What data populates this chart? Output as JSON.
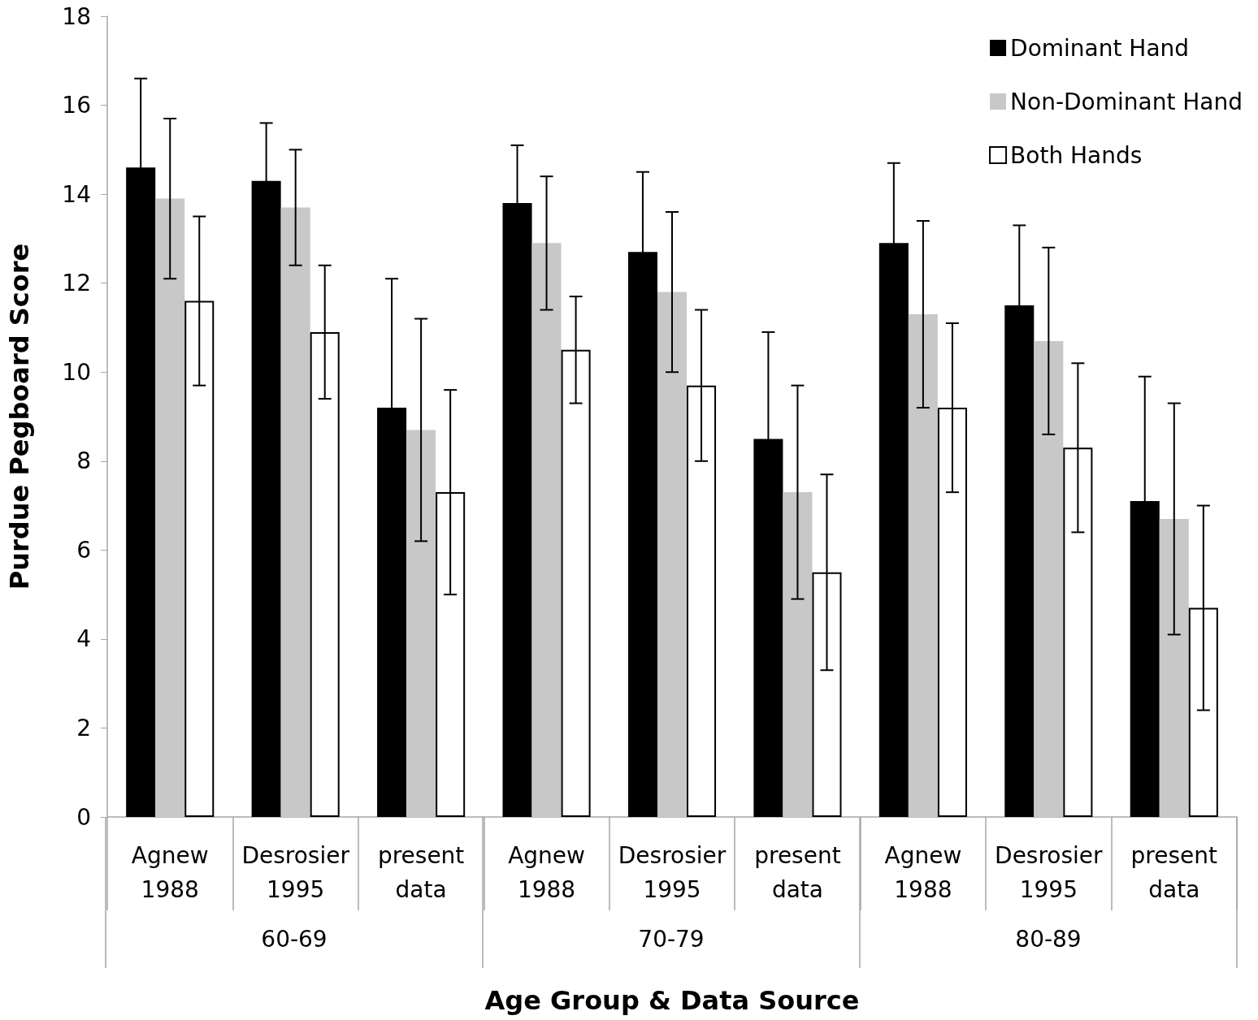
{
  "chart_data": {
    "type": "bar",
    "xlabel": "Age Group & Data Source",
    "ylabel": "Purdue Pegboard Score",
    "categories": [
      "Agnew 1988",
      "Desrosier 1995",
      "present data",
      "Agnew 1988",
      "Desrosier 1995",
      "present data",
      "Agnew 1988",
      "Desrosier 1995",
      "present data"
    ],
    "annotations": [
      "60-69",
      "70-79",
      "80-89"
    ],
    "series": [
      {
        "name": "Dominant Hand",
        "color": "#000000",
        "values": [
          14.6,
          14.3,
          9.2,
          13.8,
          12.7,
          8.5,
          12.9,
          11.5,
          7.1
        ],
        "errors": [
          2.0,
          1.3,
          2.9,
          1.3,
          1.8,
          2.4,
          1.8,
          1.8,
          2.8
        ]
      },
      {
        "name": "Non-Dominant Hand",
        "color": "#c8c8c8",
        "values": [
          13.9,
          13.7,
          8.7,
          12.9,
          11.8,
          7.3,
          11.3,
          10.7,
          6.7
        ],
        "errors": [
          1.8,
          1.3,
          2.5,
          1.5,
          1.8,
          2.4,
          2.1,
          2.1,
          2.6
        ]
      },
      {
        "name": "Both Hands",
        "color": "#ffffff",
        "values": [
          11.6,
          10.9,
          7.3,
          10.5,
          9.7,
          5.5,
          9.2,
          8.3,
          4.7
        ],
        "errors": [
          1.9,
          1.5,
          2.3,
          1.2,
          1.7,
          2.2,
          1.9,
          1.9,
          2.3
        ]
      }
    ],
    "ylim": [
      0,
      18
    ],
    "yticks": [
      0,
      2,
      4,
      6,
      8,
      10,
      12,
      14,
      16,
      18
    ],
    "grid": false,
    "legend": "top right"
  }
}
